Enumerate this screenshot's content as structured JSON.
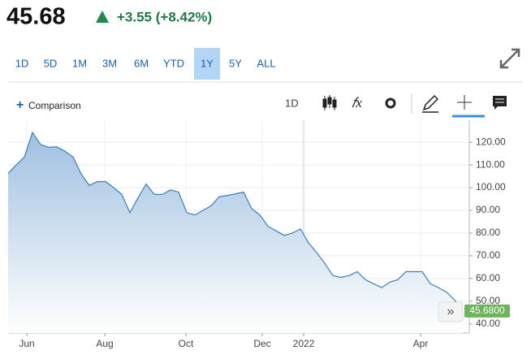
{
  "header": {
    "price": "45.68",
    "change": "+3.55 (+8.42%)"
  },
  "ranges": [
    "1D",
    "5D",
    "1M",
    "3M",
    "6M",
    "YTD",
    "1Y",
    "5Y",
    "ALL"
  ],
  "selected_range": 6,
  "toolbar": {
    "comparison": "Comparison",
    "interval": "1D"
  },
  "chart_data": {
    "type": "line",
    "series": [
      {
        "color": "#3d7db8",
        "values": [
          106.3,
          110,
          113.5,
          124.3,
          119,
          117.8,
          118,
          116,
          113.5,
          106,
          101,
          102.7,
          102.7,
          100,
          97,
          89,
          95.5,
          101.6,
          97,
          97,
          99,
          98,
          89,
          88,
          90,
          92,
          96,
          96.6,
          97.3,
          98,
          90.8,
          88,
          83,
          81,
          79,
          80,
          81.8,
          75.7,
          71.4,
          66.7,
          61.3,
          60.5,
          61.3,
          63,
          59.5,
          57.7,
          56,
          58.4,
          59.5,
          63,
          63,
          63,
          57.7,
          56,
          54,
          50.5,
          45.68
        ]
      }
    ],
    "last_label": "45.6800",
    "xlim": [
      0,
      56.8
    ],
    "xticks": [
      {
        "value": 2.3,
        "label": "Jun"
      },
      {
        "value": 11.9,
        "label": "Aug"
      },
      {
        "value": 21.9,
        "label": "Oct"
      },
      {
        "value": 31.3,
        "label": "Dec"
      },
      {
        "value": 36.4,
        "label": "2022"
      },
      {
        "value": 50.8,
        "label": "Apr"
      }
    ],
    "ylim": [
      36,
      129.7
    ],
    "yticks": [
      {
        "value": 40,
        "label": "40.00"
      },
      {
        "value": 50,
        "label": "50.00"
      },
      {
        "value": 60,
        "label": "60.00"
      },
      {
        "value": 70,
        "label": "70.00"
      },
      {
        "value": 80,
        "label": "80.00"
      },
      {
        "value": 90,
        "label": "90.00"
      },
      {
        "value": 100,
        "label": "100.00"
      },
      {
        "value": 110,
        "label": "110.00"
      },
      {
        "value": 120,
        "label": "120.00"
      }
    ],
    "grid": true
  }
}
